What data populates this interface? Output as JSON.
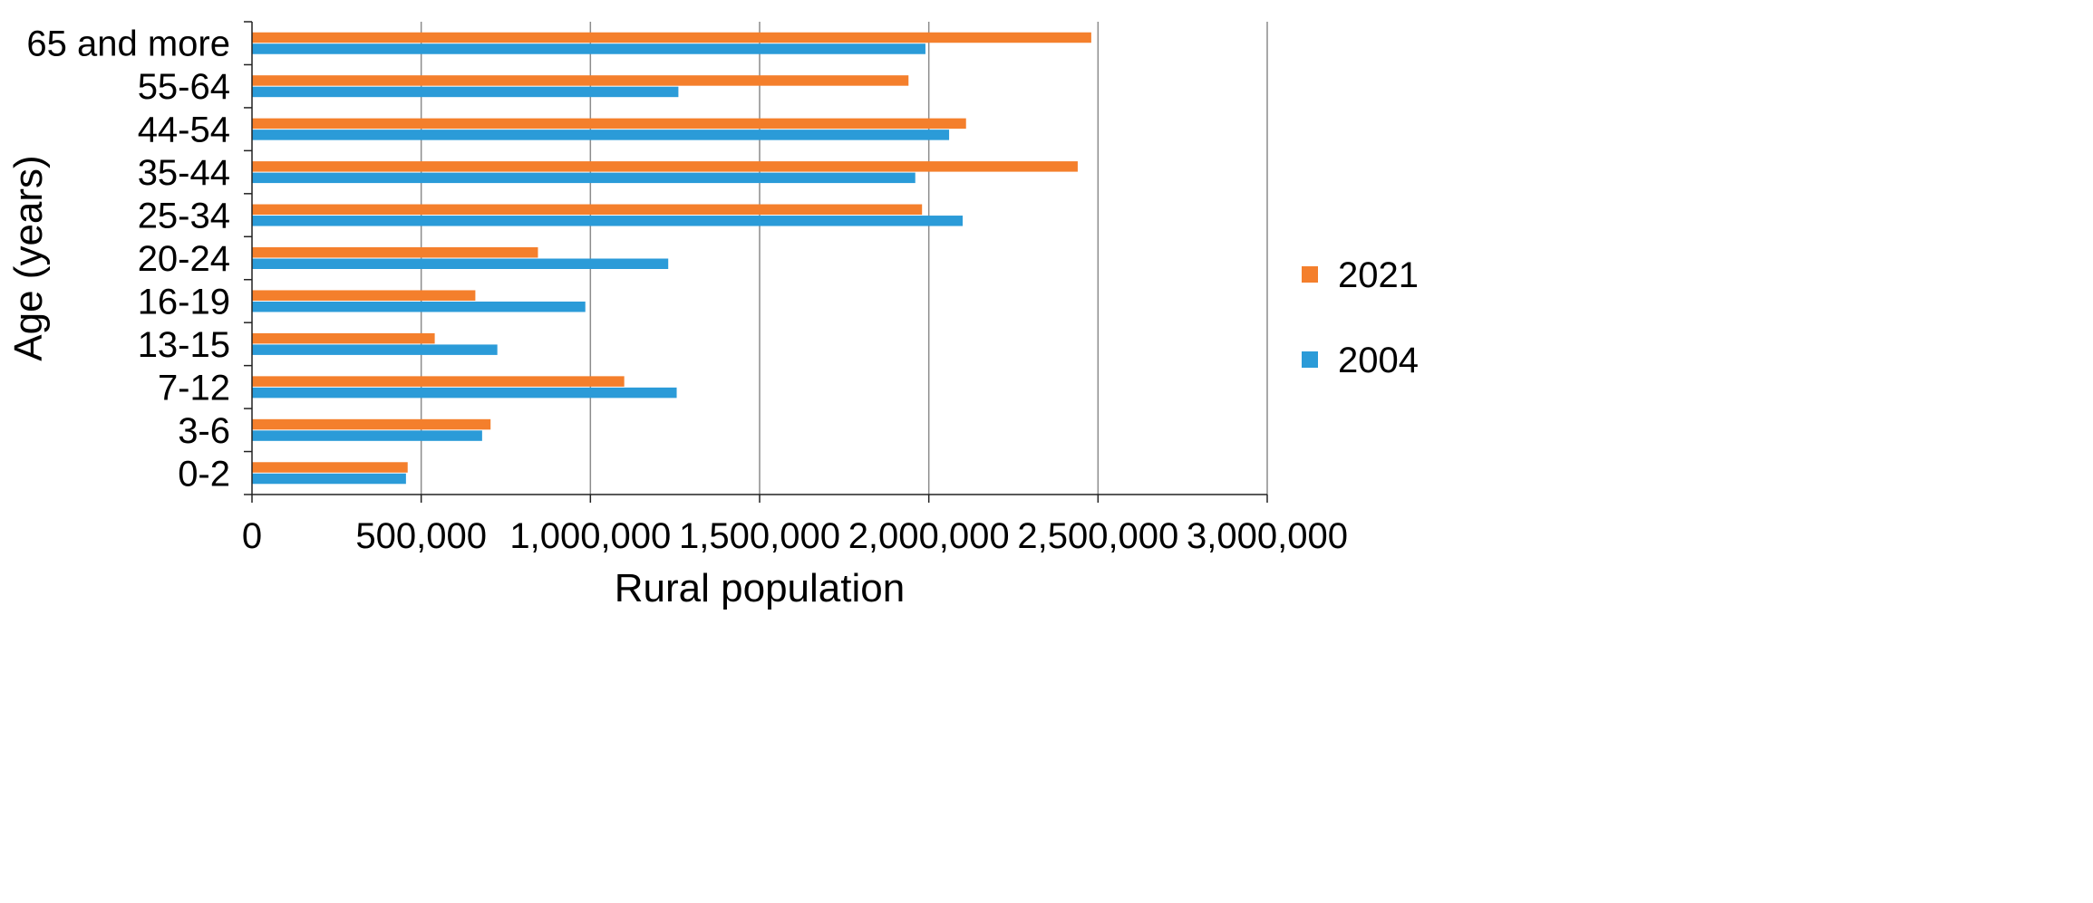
{
  "chart_data": {
    "type": "bar",
    "orientation": "horizontal",
    "title": "",
    "xlabel": "Rural population",
    "ylabel": "Age (years)",
    "xlim": [
      0,
      3000000
    ],
    "x_ticks": [
      0,
      500000,
      1000000,
      1500000,
      2000000,
      2500000,
      3000000
    ],
    "x_tick_labels": [
      "0",
      "500,000",
      "1,000,000",
      "1,500,000",
      "2,000,000",
      "2,500,000",
      "3,000,000"
    ],
    "grid": "vertical",
    "legend_position": "right",
    "categories": [
      "65 and more",
      "55-64",
      "44-54",
      "35-44",
      "25-34",
      "20-24",
      "16-19",
      "13-15",
      "7-12",
      "3-6",
      "0-2"
    ],
    "series": [
      {
        "name": "2021",
        "color": "#f47f2c",
        "values": [
          2480000,
          1940000,
          2110000,
          2440000,
          1980000,
          845000,
          660000,
          540000,
          1100000,
          705000,
          460000
        ]
      },
      {
        "name": "2004",
        "color": "#2b9bd8",
        "values": [
          1990000,
          1260000,
          2060000,
          1960000,
          2100000,
          1230000,
          985000,
          725000,
          1255000,
          680000,
          455000
        ]
      }
    ]
  }
}
